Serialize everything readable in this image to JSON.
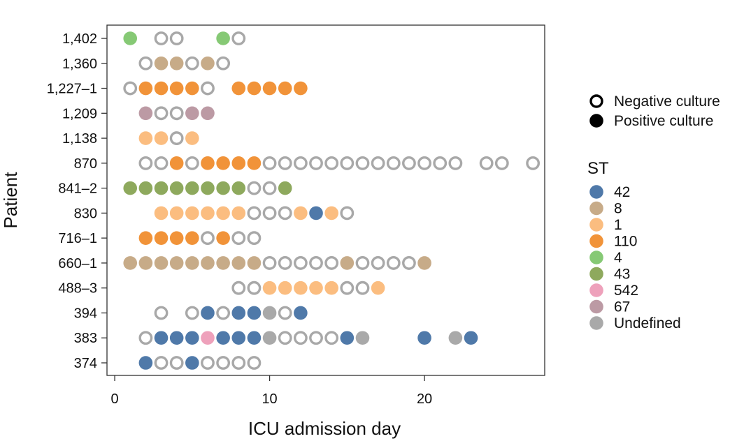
{
  "chart_data": {
    "type": "scatter",
    "title": "",
    "xlabel": "ICU admission day",
    "ylabel": "Patient",
    "xlim": [
      -0.5,
      28
    ],
    "xticks": [
      0,
      10,
      20
    ],
    "xtick_labels": [
      "0",
      "10",
      "20"
    ],
    "grid": false,
    "patients": [
      "1,402",
      "1,360",
      "1,227–1",
      "1,209",
      "1,138",
      "870",
      "841–2",
      "830",
      "716–1",
      "660–1",
      "488–3",
      "394",
      "383",
      "374"
    ],
    "culture_legend": [
      {
        "label": "Negative culture",
        "marker": "ring"
      },
      {
        "label": "Positive culture",
        "marker": "filled"
      }
    ],
    "st_legend_title": "ST",
    "st_types": [
      {
        "label": "42",
        "color": "#4f79a9"
      },
      {
        "label": "8",
        "color": "#c7ab88"
      },
      {
        "label": "1",
        "color": "#fbbd80"
      },
      {
        "label": "110",
        "color": "#f19339"
      },
      {
        "label": "4",
        "color": "#86c975"
      },
      {
        "label": "43",
        "color": "#8ea95d"
      },
      {
        "label": "542",
        "color": "#eea1bb"
      },
      {
        "label": "67",
        "color": "#bc9aa4"
      },
      {
        "label": "Undefined",
        "color": "#a9a9a9"
      }
    ],
    "samples": [
      {
        "patient": "1,402",
        "points": [
          [
            1,
            "4"
          ],
          [
            3,
            "neg"
          ],
          [
            4,
            "neg"
          ],
          [
            7,
            "4"
          ],
          [
            8,
            "neg"
          ]
        ]
      },
      {
        "patient": "1,360",
        "points": [
          [
            2,
            "neg"
          ],
          [
            3,
            "8"
          ],
          [
            4,
            "8"
          ],
          [
            5,
            "neg"
          ],
          [
            6,
            "8"
          ],
          [
            7,
            "neg"
          ]
        ]
      },
      {
        "patient": "1,227–1",
        "points": [
          [
            1,
            "neg"
          ],
          [
            2,
            "110"
          ],
          [
            3,
            "110"
          ],
          [
            4,
            "110"
          ],
          [
            5,
            "110"
          ],
          [
            6,
            "neg"
          ],
          [
            8,
            "110"
          ],
          [
            9,
            "110"
          ],
          [
            10,
            "110"
          ],
          [
            11,
            "110"
          ],
          [
            12,
            "110"
          ]
        ]
      },
      {
        "patient": "1,209",
        "points": [
          [
            2,
            "67"
          ],
          [
            3,
            "neg"
          ],
          [
            4,
            "neg"
          ],
          [
            5,
            "67"
          ],
          [
            6,
            "67"
          ]
        ]
      },
      {
        "patient": "1,138",
        "points": [
          [
            2,
            "1"
          ],
          [
            3,
            "1"
          ],
          [
            4,
            "neg"
          ],
          [
            5,
            "1"
          ]
        ]
      },
      {
        "patient": "870",
        "points": [
          [
            2,
            "neg"
          ],
          [
            3,
            "neg"
          ],
          [
            4,
            "110"
          ],
          [
            5,
            "neg"
          ],
          [
            6,
            "110"
          ],
          [
            7,
            "110"
          ],
          [
            8,
            "110"
          ],
          [
            9,
            "110"
          ],
          [
            10,
            "neg"
          ],
          [
            11,
            "neg"
          ],
          [
            12,
            "neg"
          ],
          [
            13,
            "neg"
          ],
          [
            14,
            "neg"
          ],
          [
            15,
            "neg"
          ],
          [
            16,
            "neg"
          ],
          [
            17,
            "neg"
          ],
          [
            18,
            "neg"
          ],
          [
            19,
            "neg"
          ],
          [
            20,
            "neg"
          ],
          [
            21,
            "neg"
          ],
          [
            22,
            "neg"
          ],
          [
            24,
            "neg"
          ],
          [
            25,
            "neg"
          ],
          [
            27,
            "neg"
          ]
        ]
      },
      {
        "patient": "841–2",
        "points": [
          [
            1,
            "43"
          ],
          [
            2,
            "43"
          ],
          [
            3,
            "43"
          ],
          [
            4,
            "43"
          ],
          [
            5,
            "43"
          ],
          [
            6,
            "43"
          ],
          [
            7,
            "43"
          ],
          [
            8,
            "43"
          ],
          [
            9,
            "neg"
          ],
          [
            10,
            "neg"
          ],
          [
            11,
            "43"
          ]
        ]
      },
      {
        "patient": "830",
        "points": [
          [
            3,
            "1"
          ],
          [
            4,
            "1"
          ],
          [
            5,
            "1"
          ],
          [
            6,
            "1"
          ],
          [
            7,
            "1"
          ],
          [
            8,
            "1"
          ],
          [
            9,
            "neg"
          ],
          [
            10,
            "neg"
          ],
          [
            11,
            "neg"
          ],
          [
            12,
            "1"
          ],
          [
            13,
            "42"
          ],
          [
            14,
            "1"
          ],
          [
            15,
            "neg"
          ]
        ]
      },
      {
        "patient": "716–1",
        "points": [
          [
            2,
            "110"
          ],
          [
            3,
            "110"
          ],
          [
            4,
            "110"
          ],
          [
            5,
            "110"
          ],
          [
            6,
            "neg"
          ],
          [
            7,
            "110"
          ],
          [
            8,
            "neg"
          ],
          [
            9,
            "neg"
          ]
        ]
      },
      {
        "patient": "660–1",
        "points": [
          [
            1,
            "8"
          ],
          [
            2,
            "8"
          ],
          [
            3,
            "8"
          ],
          [
            4,
            "8"
          ],
          [
            5,
            "8"
          ],
          [
            6,
            "8"
          ],
          [
            7,
            "8"
          ],
          [
            8,
            "8"
          ],
          [
            9,
            "8"
          ],
          [
            10,
            "neg"
          ],
          [
            11,
            "neg"
          ],
          [
            12,
            "neg"
          ],
          [
            13,
            "neg"
          ],
          [
            14,
            "neg"
          ],
          [
            15,
            "8"
          ],
          [
            16,
            "neg"
          ],
          [
            17,
            "neg"
          ],
          [
            18,
            "neg"
          ],
          [
            19,
            "neg"
          ],
          [
            20,
            "8"
          ]
        ]
      },
      {
        "patient": "488–3",
        "points": [
          [
            8,
            "neg"
          ],
          [
            9,
            "neg"
          ],
          [
            10,
            "1"
          ],
          [
            11,
            "1"
          ],
          [
            12,
            "1"
          ],
          [
            13,
            "1"
          ],
          [
            14,
            "1"
          ],
          [
            15,
            "neg"
          ],
          [
            16,
            "neg"
          ],
          [
            17,
            "1"
          ]
        ]
      },
      {
        "patient": "394",
        "points": [
          [
            3,
            "neg"
          ],
          [
            5,
            "neg"
          ],
          [
            6,
            "42"
          ],
          [
            7,
            "neg"
          ],
          [
            8,
            "42"
          ],
          [
            9,
            "42"
          ],
          [
            10,
            "Undefined"
          ],
          [
            11,
            "neg"
          ],
          [
            12,
            "42"
          ]
        ]
      },
      {
        "patient": "383",
        "points": [
          [
            2,
            "neg"
          ],
          [
            3,
            "42"
          ],
          [
            4,
            "42"
          ],
          [
            5,
            "42"
          ],
          [
            6,
            "542"
          ],
          [
            7,
            "42"
          ],
          [
            8,
            "42"
          ],
          [
            9,
            "42"
          ],
          [
            10,
            "Undefined"
          ],
          [
            11,
            "neg"
          ],
          [
            12,
            "neg"
          ],
          [
            13,
            "neg"
          ],
          [
            14,
            "neg"
          ],
          [
            15,
            "42"
          ],
          [
            16,
            "Undefined"
          ],
          [
            20,
            "42"
          ],
          [
            22,
            "Undefined"
          ],
          [
            23,
            "42"
          ]
        ]
      },
      {
        "patient": "374",
        "points": [
          [
            2,
            "42"
          ],
          [
            3,
            "neg"
          ],
          [
            4,
            "neg"
          ],
          [
            5,
            "42"
          ],
          [
            6,
            "neg"
          ],
          [
            7,
            "neg"
          ],
          [
            8,
            "neg"
          ],
          [
            9,
            "neg"
          ]
        ]
      }
    ]
  }
}
